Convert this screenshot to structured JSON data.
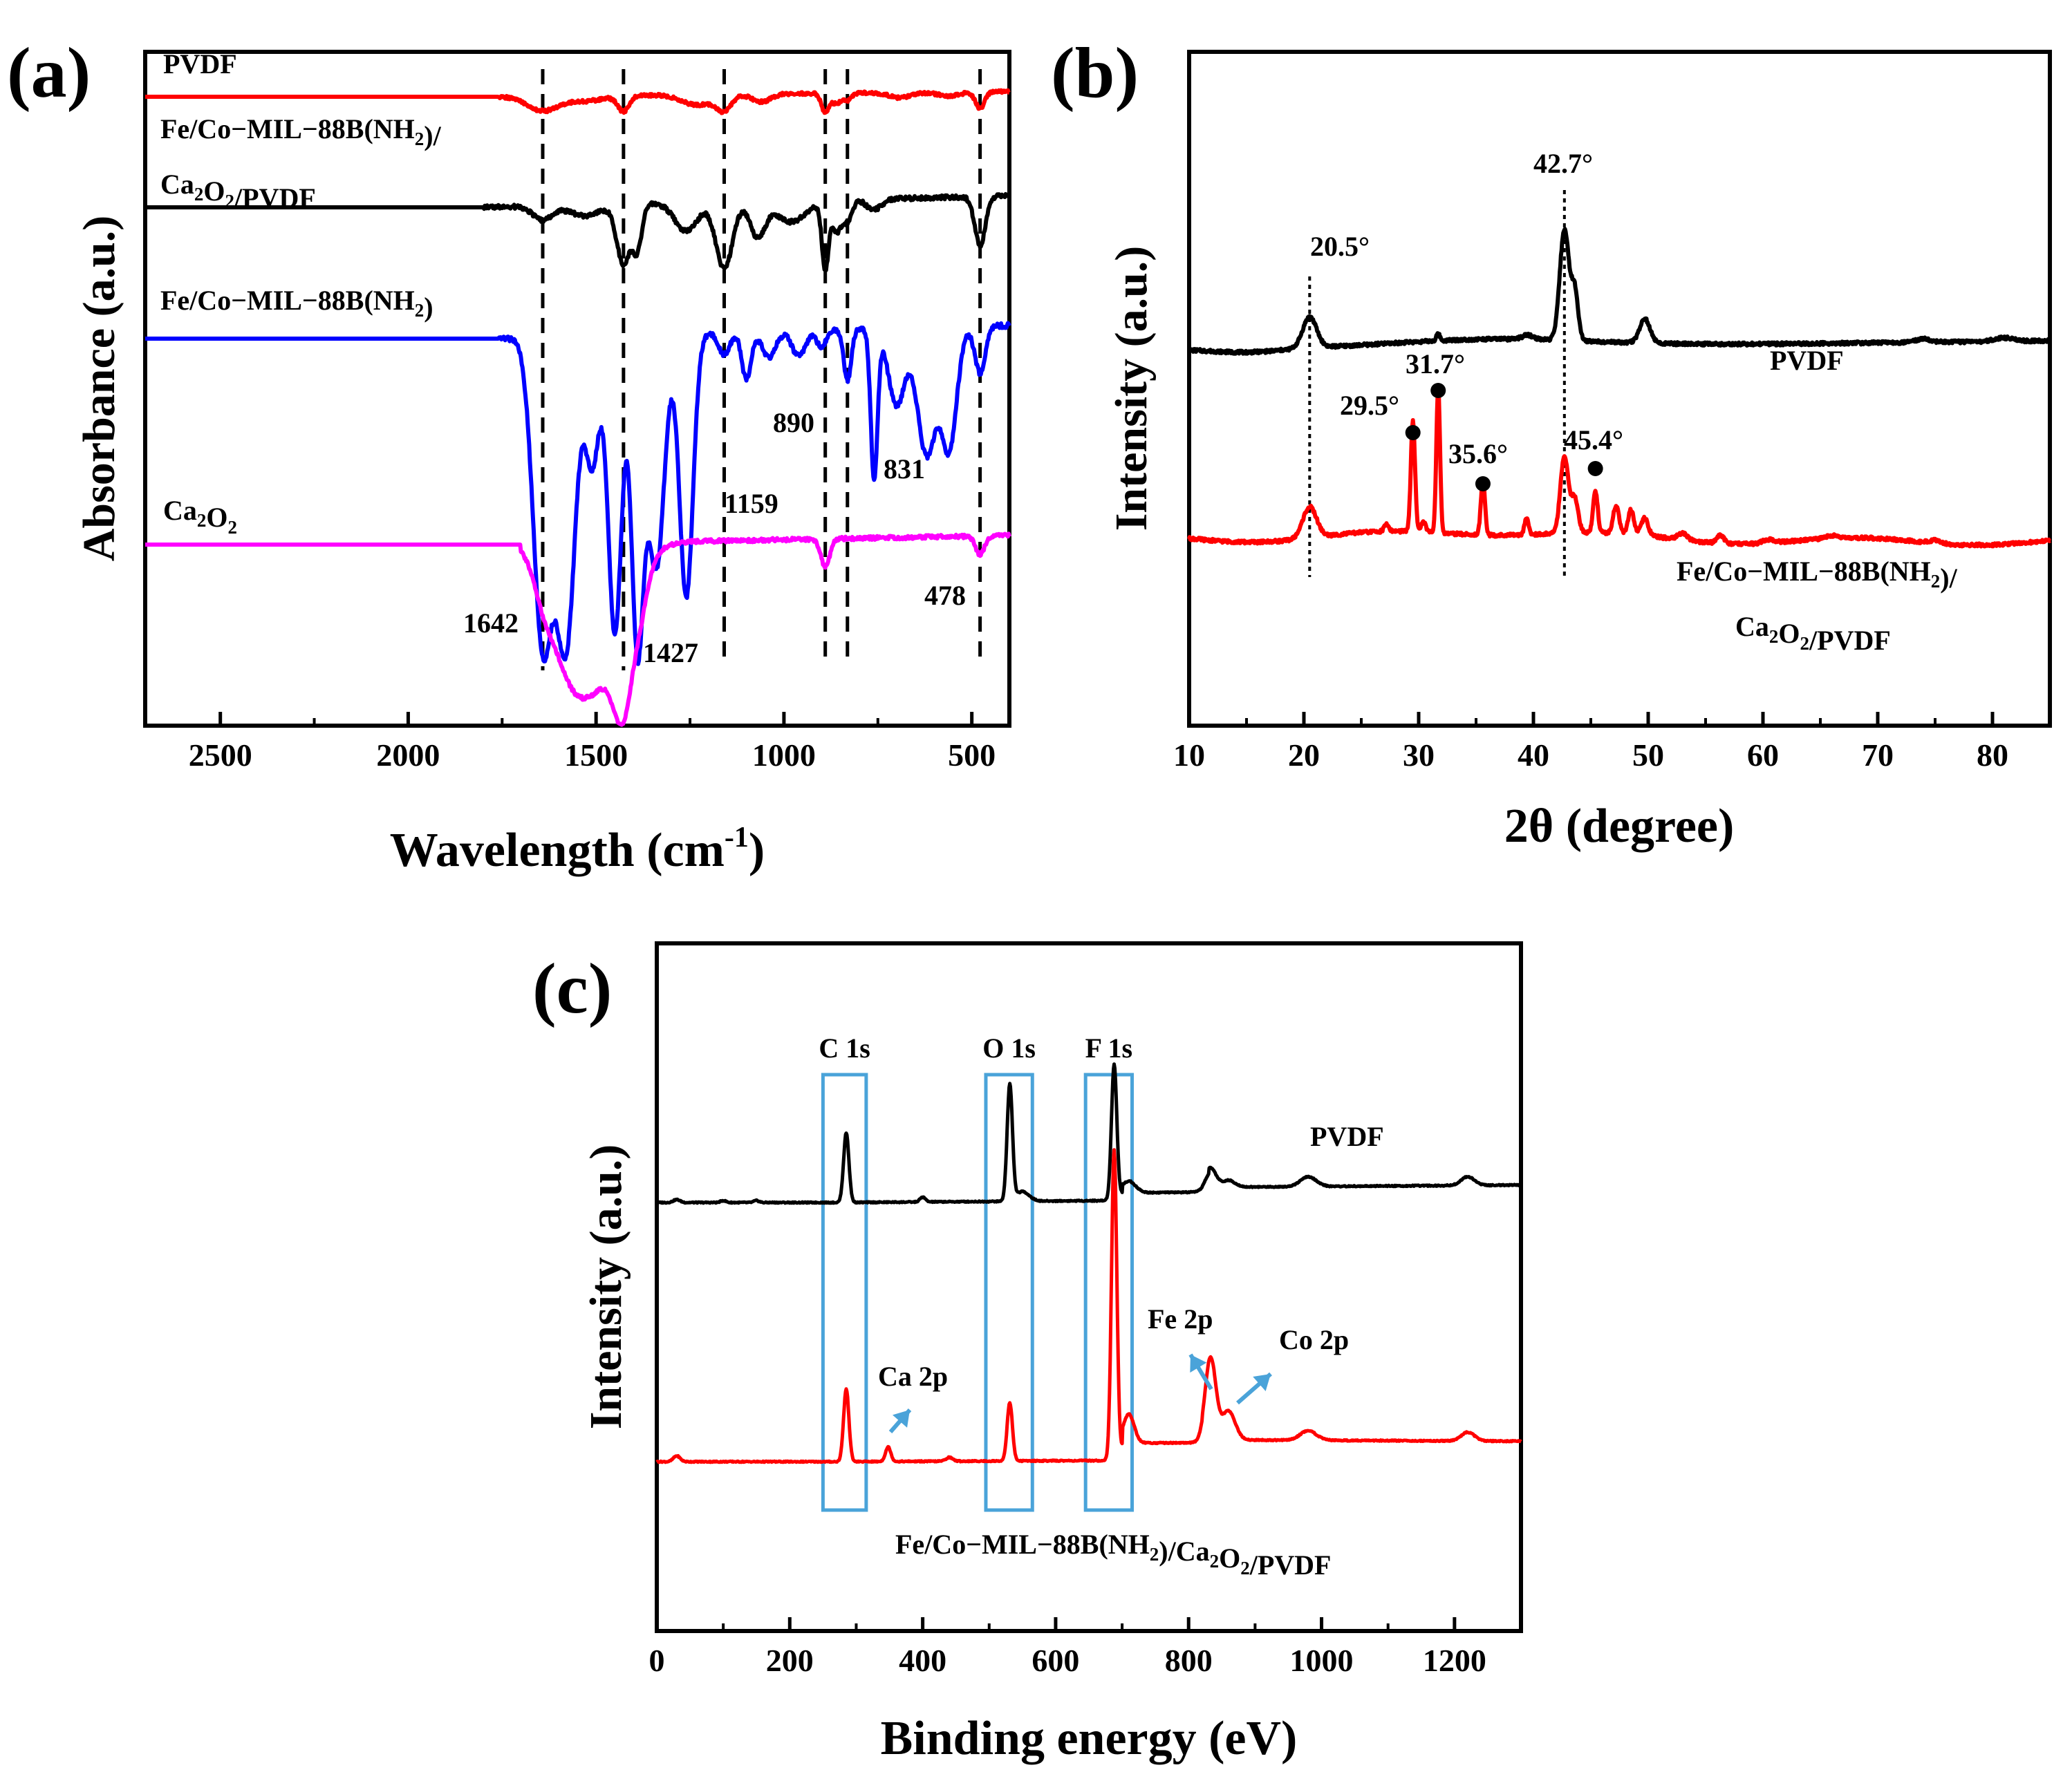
{
  "chart_data": [
    {
      "panel": "(a)",
      "type": "line",
      "xlabel": "Wavelength (cm-1)",
      "xlabel_parts": [
        "Wavelength (cm",
        "-1",
        ")"
      ],
      "ylabel": "Absorbance (a.u.)",
      "xlim": [
        2700,
        400
      ],
      "x_reversed": true,
      "xticks": [
        2500,
        2000,
        1500,
        1000,
        500
      ],
      "y_ticks_shown": false,
      "series": [
        {
          "name": "PVDF",
          "name_parts": [
            [
              "PVDF",
              null
            ]
          ],
          "color": "#ff0000",
          "baseline": 0.0,
          "bands": [
            [
              1642,
              0.055,
              40
            ],
            [
              1530,
              0.02,
              50
            ],
            [
              1427,
              0.06,
              15
            ],
            [
              1230,
              0.04,
              40
            ],
            [
              1159,
              0.06,
              20
            ],
            [
              1060,
              0.03,
              25
            ],
            [
              890,
              0.075,
              10
            ],
            [
              860,
              0.04,
              12
            ],
            [
              831,
              0.03,
              10
            ],
            [
              690,
              0.02,
              30
            ],
            [
              560,
              0.015,
              30
            ],
            [
              478,
              0.065,
              12
            ]
          ]
        },
        {
          "name": "Fe/Co−MIL−88B(NH2)/Ca2O2/PVDF",
          "name_parts": [
            [
              "Fe/Co−MIL−88B(NH",
              null
            ],
            [
              "2",
              "sub"
            ],
            [
              ")/",
              null
            ]
          ],
          "name_parts_2": [
            [
              "Ca",
              null
            ],
            [
              "2",
              "sub"
            ],
            [
              "O",
              null
            ],
            [
              "2",
              "sub"
            ],
            [
              "/PVDF",
              null
            ]
          ],
          "color": "#000000",
          "baseline": 0.0,
          "bands": [
            [
              1642,
              0.04,
              25
            ],
            [
              1530,
              0.03,
              40
            ],
            [
              1427,
              0.17,
              18
            ],
            [
              1390,
              0.12,
              12
            ],
            [
              1260,
              0.08,
              30
            ],
            [
              1159,
              0.19,
              22
            ],
            [
              1070,
              0.1,
              20
            ],
            [
              980,
              0.06,
              40
            ],
            [
              890,
              0.19,
              9
            ],
            [
              860,
              0.09,
              12
            ],
            [
              831,
              0.06,
              12
            ],
            [
              760,
              0.03,
              20
            ],
            [
              478,
              0.14,
              14
            ]
          ]
        },
        {
          "name": "Fe/Co−MIL−88B(NH2)",
          "name_parts": [
            [
              "Fe/Co−MIL−88B(NH",
              null
            ],
            [
              "2",
              "sub"
            ],
            [
              ")",
              null
            ]
          ],
          "color": "#0000ff",
          "baseline": 0.0,
          "bands": [
            [
              1642,
              0.72,
              25
            ],
            [
              1580,
              0.72,
              25
            ],
            [
              1510,
              0.3,
              18
            ],
            [
              1450,
              0.7,
              18
            ],
            [
              1390,
              0.72,
              16
            ],
            [
              1340,
              0.55,
              22
            ],
            [
              1260,
              0.62,
              18
            ],
            [
              1159,
              0.05,
              15
            ],
            [
              1100,
              0.11,
              12
            ],
            [
              1040,
              0.06,
              18
            ],
            [
              960,
              0.06,
              18
            ],
            [
              900,
              0.04,
              12
            ],
            [
              831,
              0.12,
              10
            ],
            [
              760,
              0.35,
              9
            ],
            [
              700,
              0.18,
              22
            ],
            [
              620,
              0.3,
              25
            ],
            [
              560,
              0.28,
              20
            ],
            [
              478,
              0.11,
              14
            ]
          ]
        },
        {
          "name": "Ca2O2",
          "name_parts": [
            [
              "Ca",
              null
            ],
            [
              "2",
              "sub"
            ],
            [
              "O",
              null
            ],
            [
              "2",
              "sub"
            ]
          ],
          "color": "#ff00ff",
          "baseline": 0.0,
          "bands": [
            [
              1642,
              0.08,
              25
            ],
            [
              1580,
              0.25,
              50
            ],
            [
              1490,
              0.42,
              70
            ],
            [
              1427,
              0.3,
              25
            ],
            [
              1380,
              0.1,
              20
            ],
            [
              890,
              0.09,
              12
            ],
            [
              478,
              0.06,
              12
            ]
          ]
        }
      ],
      "annotations": {
        "dashed_lines": [
          1642,
          1427,
          1159,
          890,
          831,
          478
        ],
        "labels": [
          "1642",
          "1427",
          "1159",
          "890",
          "831",
          "478"
        ]
      }
    },
    {
      "panel": "(b)",
      "type": "line",
      "xlabel": "2θ (degree)",
      "ylabel": "Intensity (a.u.)",
      "xlim": [
        10,
        85
      ],
      "xticks": [
        10,
        20,
        30,
        40,
        50,
        60,
        70,
        80
      ],
      "y_ticks_shown": false,
      "series": [
        {
          "name": "PVDF",
          "name_parts": [
            [
              "PVDF",
              null
            ]
          ],
          "color": "#000000",
          "peaks": [
            [
              20.5,
              0.45,
              0.6
            ],
            [
              31.7,
              0.1,
              0.15
            ],
            [
              39.5,
              0.06,
              0.5
            ],
            [
              42.7,
              1.6,
              0.4
            ],
            [
              43.6,
              0.7,
              0.3
            ],
            [
              49.7,
              0.35,
              0.45
            ],
            [
              74,
              0.05,
              0.6
            ],
            [
              81,
              0.05,
              0.8
            ]
          ]
        },
        {
          "name": "Fe/Co−MIL−88B(NH2)/Ca2O2/PVDF",
          "name_parts": [
            [
              "Fe/Co−MIL−88B(NH",
              null
            ],
            [
              "2",
              "sub"
            ],
            [
              ")/",
              null
            ]
          ],
          "name_parts_2": [
            [
              "Ca",
              null
            ],
            [
              "2",
              "sub"
            ],
            [
              "O",
              null
            ],
            [
              "2",
              "sub"
            ],
            [
              "/PVDF",
              null
            ]
          ],
          "color": "#ff0000",
          "peaks": [
            [
              20.5,
              0.45,
              0.6
            ],
            [
              27.2,
              0.1,
              0.2
            ],
            [
              29.5,
              1.6,
              0.18
            ],
            [
              30.4,
              0.15,
              0.2
            ],
            [
              31.7,
              2.1,
              0.16
            ],
            [
              35.6,
              0.8,
              0.18
            ],
            [
              39.4,
              0.25,
              0.18
            ],
            [
              42.7,
              1.1,
              0.35
            ],
            [
              43.6,
              0.5,
              0.3
            ],
            [
              45.4,
              0.6,
              0.2
            ],
            [
              47.2,
              0.4,
              0.25
            ],
            [
              48.5,
              0.35,
              0.25
            ],
            [
              49.7,
              0.25,
              0.3
            ],
            [
              53,
              0.1,
              0.4
            ],
            [
              56.3,
              0.12,
              0.3
            ],
            [
              60.5,
              0.05,
              0.5
            ],
            [
              66,
              0.04,
              0.5
            ],
            [
              75,
              0.04,
              0.5
            ]
          ]
        }
      ],
      "annotations": {
        "dotted_lines": [
          20.5,
          42.7
        ],
        "labels": [
          "20.5°",
          "42.7°",
          "29.5°",
          "31.7°",
          "35.6°",
          "45.4°"
        ],
        "markers": [
          29.5,
          31.7,
          35.6,
          45.4
        ]
      }
    },
    {
      "panel": "(c)",
      "type": "line",
      "xlabel": "Binding energy (eV)",
      "ylabel": "Intensity (a.u.)",
      "xlim": [
        0,
        1300
      ],
      "xticks": [
        0,
        200,
        400,
        600,
        800,
        1000,
        1200
      ],
      "y_ticks_shown": false,
      "series": [
        {
          "name": "PVDF",
          "name_parts": [
            [
              "PVDF",
              null
            ]
          ],
          "color": "#000000",
          "peaks": [
            [
              30,
              0.03,
              5
            ],
            [
              100,
              0.02,
              4
            ],
            [
              150,
              0.02,
              4
            ],
            [
              285,
              0.72,
              4
            ],
            [
              400,
              0.05,
              4
            ],
            [
              531,
              1.2,
              4
            ],
            [
              550,
              0.1,
              10
            ],
            [
              688,
              1.4,
              4
            ],
            [
              710,
              0.12,
              10
            ],
            [
              833,
              0.2,
              8
            ],
            [
              860,
              0.07,
              10
            ],
            [
              980,
              0.1,
              12
            ],
            [
              1220,
              0.09,
              10
            ]
          ]
        },
        {
          "name": "Fe/Co−MIL−88B(NH2)/Ca2O2/PVDF",
          "name_parts": [
            [
              "Fe/Co−MIL−88B(NH",
              null
            ],
            [
              "2",
              "sub"
            ],
            [
              ")/Ca",
              null
            ],
            [
              "2",
              "sub"
            ],
            [
              "O",
              null
            ],
            [
              "2",
              "sub"
            ],
            [
              "/PVDF",
              null
            ]
          ],
          "color": "#ff0000",
          "peaks": [
            [
              30,
              0.06,
              5
            ],
            [
              285,
              0.75,
              4
            ],
            [
              348,
              0.15,
              4
            ],
            [
              440,
              0.04,
              5
            ],
            [
              531,
              0.6,
              4
            ],
            [
              688,
              3.2,
              4
            ],
            [
              710,
              0.3,
              8
            ],
            [
              833,
              0.85,
              8
            ],
            [
              860,
              0.3,
              10
            ],
            [
              980,
              0.1,
              12
            ],
            [
              1220,
              0.09,
              10
            ]
          ]
        }
      ],
      "annotations": {
        "boxes": [
          {
            "label": "C 1s",
            "x": [
              250,
              315
            ]
          },
          {
            "label": "O 1s",
            "x": [
              495,
              565
            ]
          },
          {
            "label": "F 1s",
            "x": [
              645,
              715
            ]
          }
        ],
        "labels": [
          "Ca 2p",
          "Fe 2p",
          "Co 2p"
        ],
        "arrow_color": "#4aa3d9"
      }
    }
  ]
}
